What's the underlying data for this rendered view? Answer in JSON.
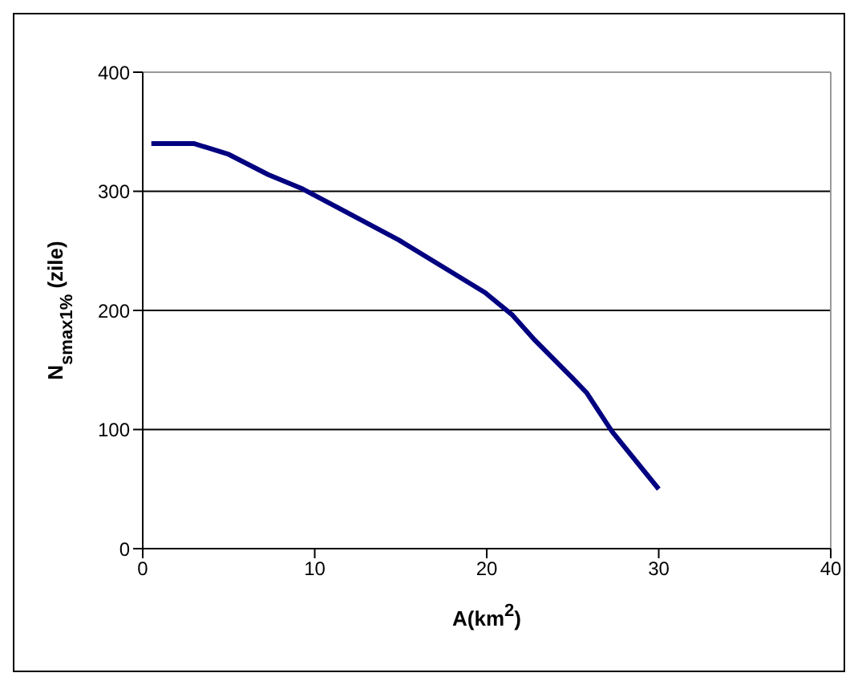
{
  "chart_data": {
    "type": "line",
    "xlabel": "A(km$^{2}$)",
    "ylabel": "N$_{smax1%}$ (zile)",
    "x": [
      0.5,
      3,
      5,
      7.3,
      9.3,
      14.9,
      19.9,
      21.5,
      22.8,
      25,
      25.8,
      27.3,
      30
    ],
    "series": [
      {
        "color": "#000080",
        "values": [
          340,
          340,
          331,
          314,
          302,
          259,
          215,
          196,
          175,
          143,
          131,
          98,
          50
        ]
      }
    ],
    "xlim": [
      0,
      40
    ],
    "xticks": [
      0,
      10,
      20,
      30,
      40
    ],
    "ylim": [
      0,
      400
    ],
    "yticks": [
      0,
      100,
      200,
      300,
      400
    ],
    "grid": "y",
    "marker": "none",
    "line_style": "solid"
  }
}
